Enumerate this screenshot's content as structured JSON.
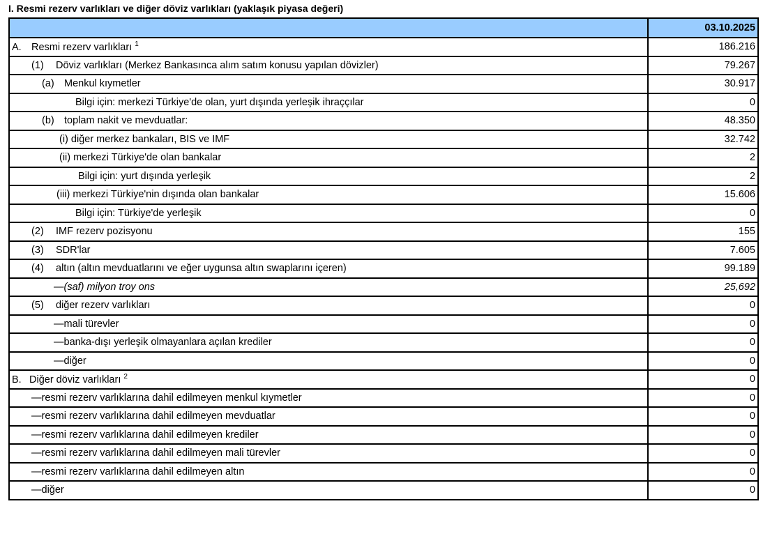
{
  "title": "I. Resmi rezerv varlıkları ve diğer döviz varlıkları (yaklaşık  piyasa değeri)",
  "header": {
    "label": "",
    "date": "03.10.2025"
  },
  "rows": [
    {
      "prefix": "A.",
      "label": "Resmi rezerv varlıkları",
      "sup": "1",
      "value": "186.216"
    },
    {
      "prefix": "(1)",
      "label": "Döviz varlıkları  (Merkez Bankasınca alım satım konusu yapılan dövizler)",
      "value": "79.267"
    },
    {
      "prefix": "(a)",
      "label": "Menkul kıymetler",
      "value": "30.917"
    },
    {
      "prefix": "",
      "label": "Bilgi için: merkezi Türkiye'de olan, yurt dışında yerleşik ihraççılar",
      "value": "0"
    },
    {
      "prefix": "(b)",
      "label": "toplam nakit ve mevduatlar:",
      "value": "48.350"
    },
    {
      "prefix": "",
      "label": "(i) diğer merkez bankaları, BIS ve IMF",
      "value": "32.742"
    },
    {
      "prefix": "",
      "label": "(ii) merkezi Türkiye'de olan bankalar",
      "value": "2"
    },
    {
      "prefix": "",
      "label": "Bilgi için: yurt dışında yerleşik",
      "value": "2"
    },
    {
      "prefix": "",
      "label": "(iii) merkezi Türkiye'nin dışında olan bankalar",
      "value": "15.606"
    },
    {
      "prefix": "",
      "label": "Bilgi için: Türkiye'de yerleşik",
      "value": "0"
    },
    {
      "prefix": "(2)",
      "label": "IMF rezerv pozisyonu",
      "value": "155"
    },
    {
      "prefix": "(3)",
      "label": "SDR'lar",
      "value": "7.605"
    },
    {
      "prefix": "(4)",
      "label": "altın (altın mevduatlarını ve eğer uygunsa altın swaplarını içeren)",
      "value": "99.189"
    },
    {
      "prefix": "",
      "label": "—(saf) milyon troy ons",
      "value": "25,692",
      "italic": true
    },
    {
      "prefix": "(5)",
      "label": "diğer rezerv varlıkları",
      "value": "0"
    },
    {
      "prefix": "",
      "label": "—mali türevler",
      "value": "0"
    },
    {
      "prefix": "",
      "label": "—banka-dışı yerleşik olmayanlara açılan krediler",
      "value": "0"
    },
    {
      "prefix": "",
      "label": "—diğer",
      "value": "0"
    },
    {
      "prefix": "B.",
      "label": "Diğer döviz varlıkları",
      "sup": "2",
      "value": "0"
    },
    {
      "prefix": "",
      "label": "—resmi rezerv varlıklarına dahil edilmeyen menkul kıymetler",
      "value": "0"
    },
    {
      "prefix": "",
      "label": "—resmi rezerv varlıklarına dahil edilmeyen mevduatlar",
      "value": "0"
    },
    {
      "prefix": "",
      "label": "—resmi rezerv varlıklarına dahil edilmeyen krediler",
      "value": "0"
    },
    {
      "prefix": "",
      "label": "—resmi rezerv varlıklarına dahil edilmeyen mali türevler",
      "value": "0"
    },
    {
      "prefix": "",
      "label": "—resmi rezerv varlıklarına dahil edilmeyen altın",
      "value": "0"
    },
    {
      "prefix": "",
      "label": "—diğer",
      "value": "0"
    }
  ]
}
